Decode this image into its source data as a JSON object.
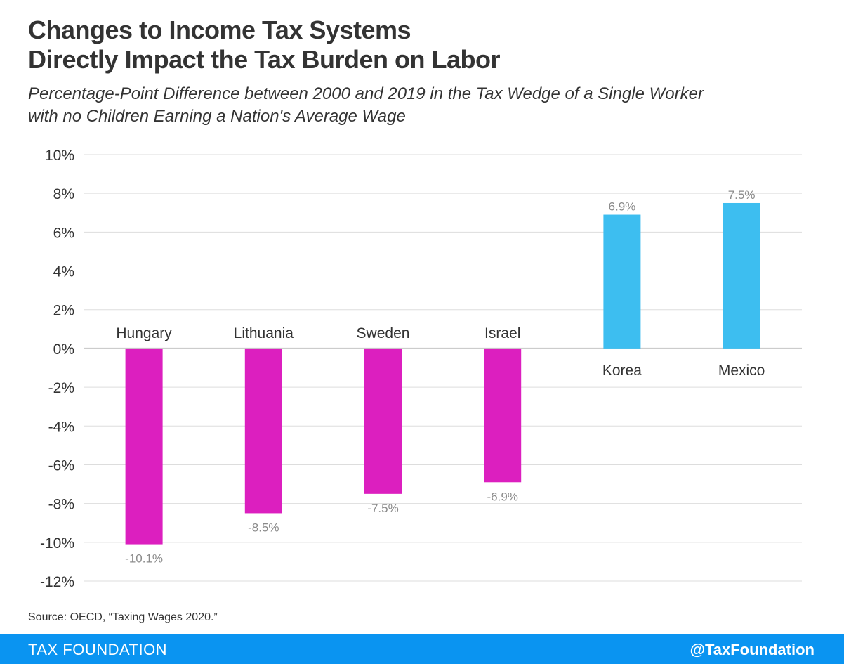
{
  "chart_data": {
    "type": "bar",
    "title": [
      "Changes to Income Tax Systems",
      "Directly Impact the Tax Burden on Labor"
    ],
    "subtitle": [
      "Percentage-Point Difference between 2000 and 2019 in the Tax Wedge of a Single Worker",
      "with no Children Earning a Nation's Average Wage"
    ],
    "categories": [
      "Hungary",
      "Lithuania",
      "Sweden",
      "Israel",
      "Korea",
      "Mexico"
    ],
    "values": [
      -10.1,
      -8.5,
      -7.5,
      -6.9,
      6.9,
      7.5
    ],
    "value_labels": [
      "-10.1%",
      "-8.5%",
      "-7.5%",
      "-6.9%",
      "6.9%",
      "7.5%"
    ],
    "ylim": [
      -12,
      10
    ],
    "yticks": [
      10,
      8,
      6,
      4,
      2,
      0,
      -2,
      -4,
      -6,
      -8,
      -10,
      -12
    ],
    "ytick_labels": [
      "10%",
      "8%",
      "6%",
      "4%",
      "2%",
      "0%",
      "-2%",
      "-4%",
      "-6%",
      "-8%",
      "-10%",
      "-12%"
    ],
    "xlabel": "",
    "ylabel": "",
    "grid": true,
    "colors": {
      "negative": "#dc1fbf",
      "positive": "#3dbef0",
      "grid": "#dddddd",
      "zero_line": "#cccccc",
      "tick_text": "#333333",
      "value_text": "#8a8a8a"
    }
  },
  "source": "Source: OECD, “Taxing Wages 2020.”",
  "footer": {
    "brand": "TAX FOUNDATION",
    "handle": "@TaxFoundation",
    "background": "#0a94f1"
  }
}
